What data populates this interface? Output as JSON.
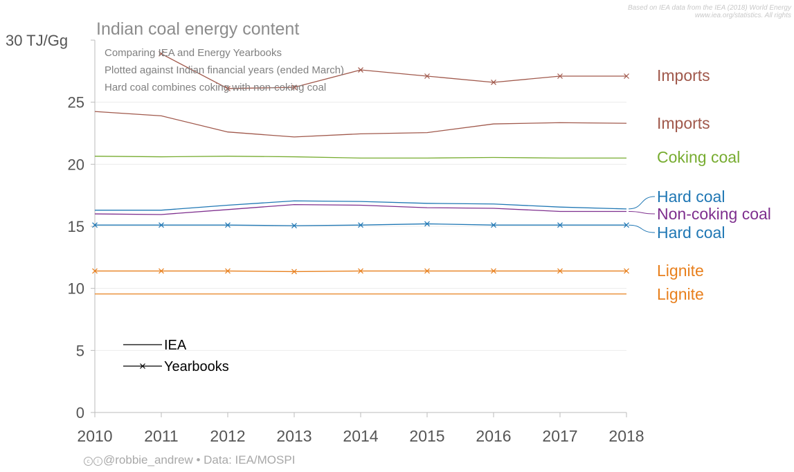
{
  "source_note": {
    "line1": "Based on IEA data from the IEA (2018) World Energy",
    "line2": "www.iea.org/statistics. All rights"
  },
  "credit": {
    "handle": "@robbie_andrew",
    "separator": "•",
    "data_source": "Data: IEA/MOSPI"
  },
  "chart_data": {
    "type": "line",
    "title": "Indian coal energy content",
    "subtitle_lines": [
      "Comparing IEA and Energy Yearbooks",
      "Plotted against Indian financial years (ended March)",
      "Hard coal combines coking with non-coking coal"
    ],
    "ylabel": "30 TJ/Gg",
    "ylim": [
      0,
      30
    ],
    "yticks": [
      "0",
      "5",
      "10",
      "15",
      "20",
      "25"
    ],
    "xlim": [
      2010,
      2018
    ],
    "x": [
      2010,
      2011,
      2012,
      2013,
      2014,
      2015,
      2016,
      2017,
      2018
    ],
    "grid": true,
    "legend": {
      "position": "bottom-left",
      "entries": [
        {
          "label": "IEA",
          "marker": "none"
        },
        {
          "label": "Yearbooks",
          "marker": "x"
        }
      ]
    },
    "series": [
      {
        "name": "Imports",
        "source": "Yearbooks",
        "marker": "x",
        "color": "#a0584b",
        "values": [
          null,
          28.9,
          26.1,
          26.2,
          27.6,
          27.1,
          26.6,
          27.1,
          27.1
        ]
      },
      {
        "name": "Imports",
        "source": "IEA",
        "marker": "none",
        "color": "#a0584b",
        "values": [
          24.25,
          23.9,
          22.6,
          22.2,
          22.45,
          22.55,
          23.25,
          23.35,
          23.3
        ]
      },
      {
        "name": "Coking coal",
        "source": "IEA",
        "marker": "none",
        "color": "#77ac30",
        "values": [
          20.65,
          20.6,
          20.65,
          20.6,
          20.5,
          20.5,
          20.55,
          20.5,
          20.5
        ]
      },
      {
        "name": "Hard coal",
        "source": "IEA",
        "marker": "none",
        "color": "#1f77b4",
        "values": [
          16.3,
          16.3,
          16.7,
          17.05,
          17.0,
          16.85,
          16.8,
          16.55,
          16.4
        ]
      },
      {
        "name": "Non-coking coal",
        "source": "IEA",
        "marker": "none",
        "color": "#7e2f8e",
        "values": [
          16.0,
          15.95,
          16.35,
          16.75,
          16.7,
          16.5,
          16.45,
          16.2,
          16.2
        ]
      },
      {
        "name": "Hard coal",
        "source": "Yearbooks",
        "marker": "x",
        "color": "#1f77b4",
        "values": [
          15.1,
          15.1,
          15.1,
          15.05,
          15.1,
          15.2,
          15.1,
          15.1,
          15.1
        ]
      },
      {
        "name": "Lignite",
        "source": "Yearbooks",
        "marker": "x",
        "color": "#e8801e",
        "values": [
          11.4,
          11.4,
          11.4,
          11.35,
          11.4,
          11.4,
          11.4,
          11.4,
          11.4
        ]
      },
      {
        "name": "Lignite",
        "source": "IEA",
        "marker": "none",
        "color": "#e8801e",
        "values": [
          9.55,
          9.55,
          9.55,
          9.55,
          9.55,
          9.55,
          9.55,
          9.55,
          9.55
        ]
      }
    ]
  }
}
